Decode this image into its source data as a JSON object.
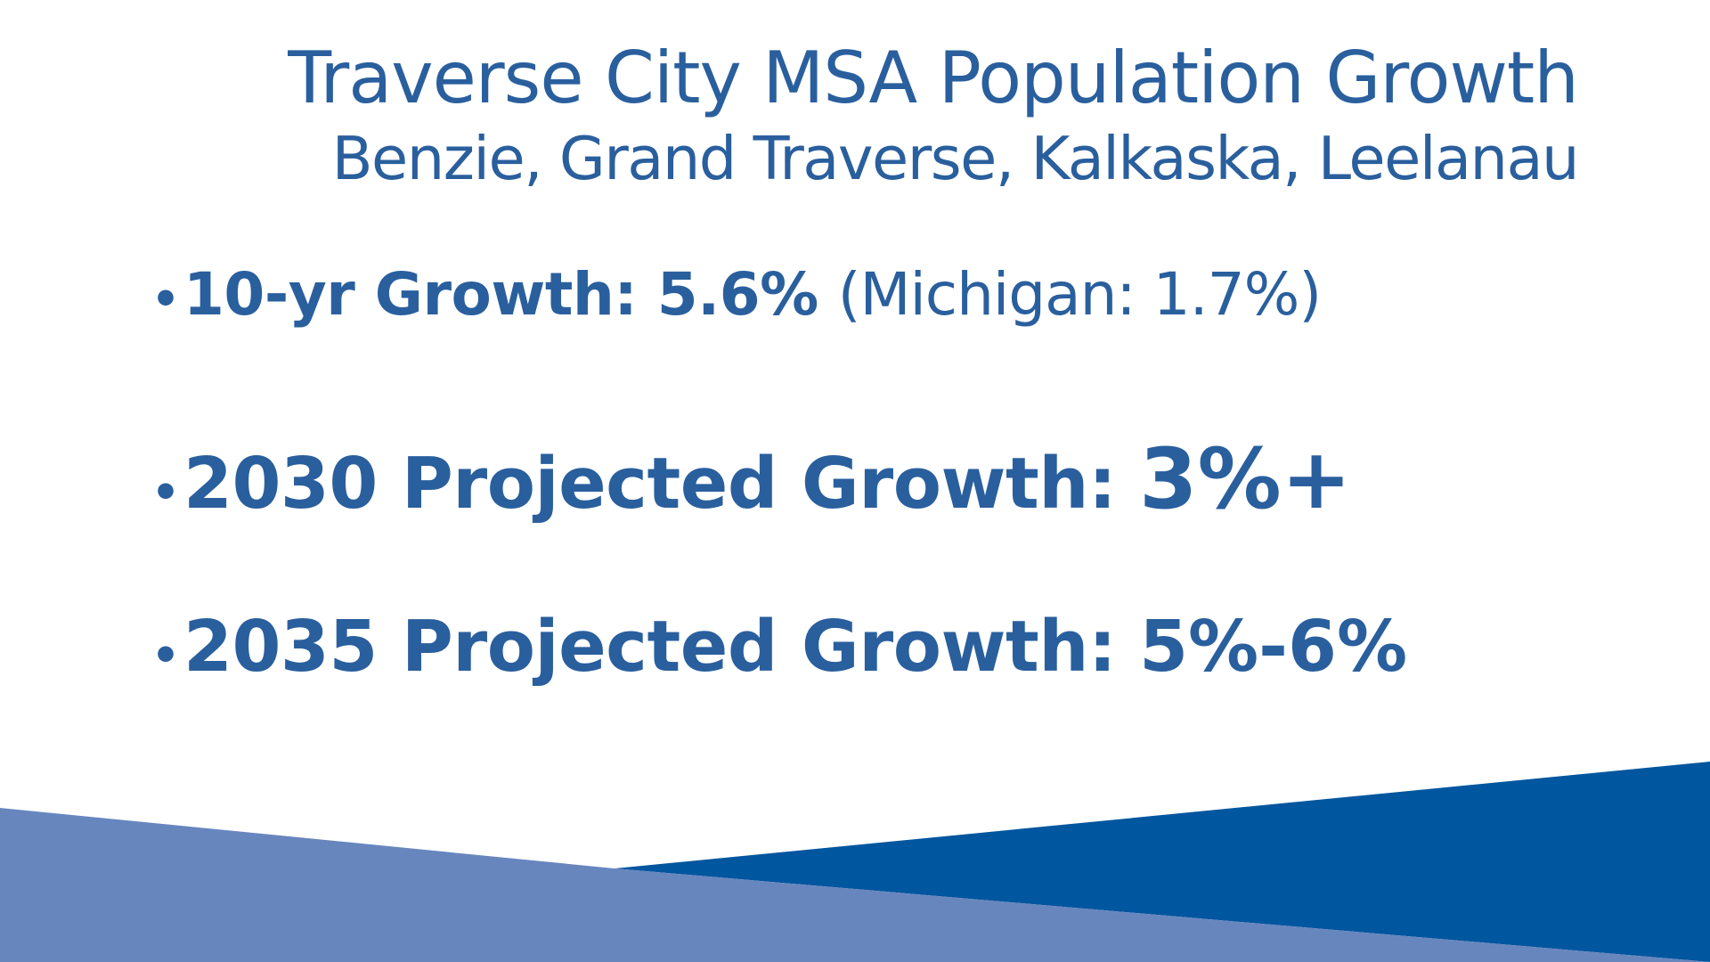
{
  "slide": {
    "title": "Traverse City MSA Population Growth",
    "subtitle": "Benzie, Grand Traverse, Kalkaska, Leelanau"
  },
  "bullets": [
    {
      "marker": "•",
      "label": "10-yr Growth: 5.6%",
      "note": "(Michigan: 1.7%)"
    },
    {
      "marker": "•",
      "label": "2030 Projected Growth:",
      "value": "3%+"
    },
    {
      "marker": "•",
      "label": "2035 Projected Growth:",
      "value": "5%-6%"
    }
  ],
  "colors": {
    "text": "#2a5f9e",
    "shape_light": "#6886be",
    "shape_dark": "#00569f"
  }
}
